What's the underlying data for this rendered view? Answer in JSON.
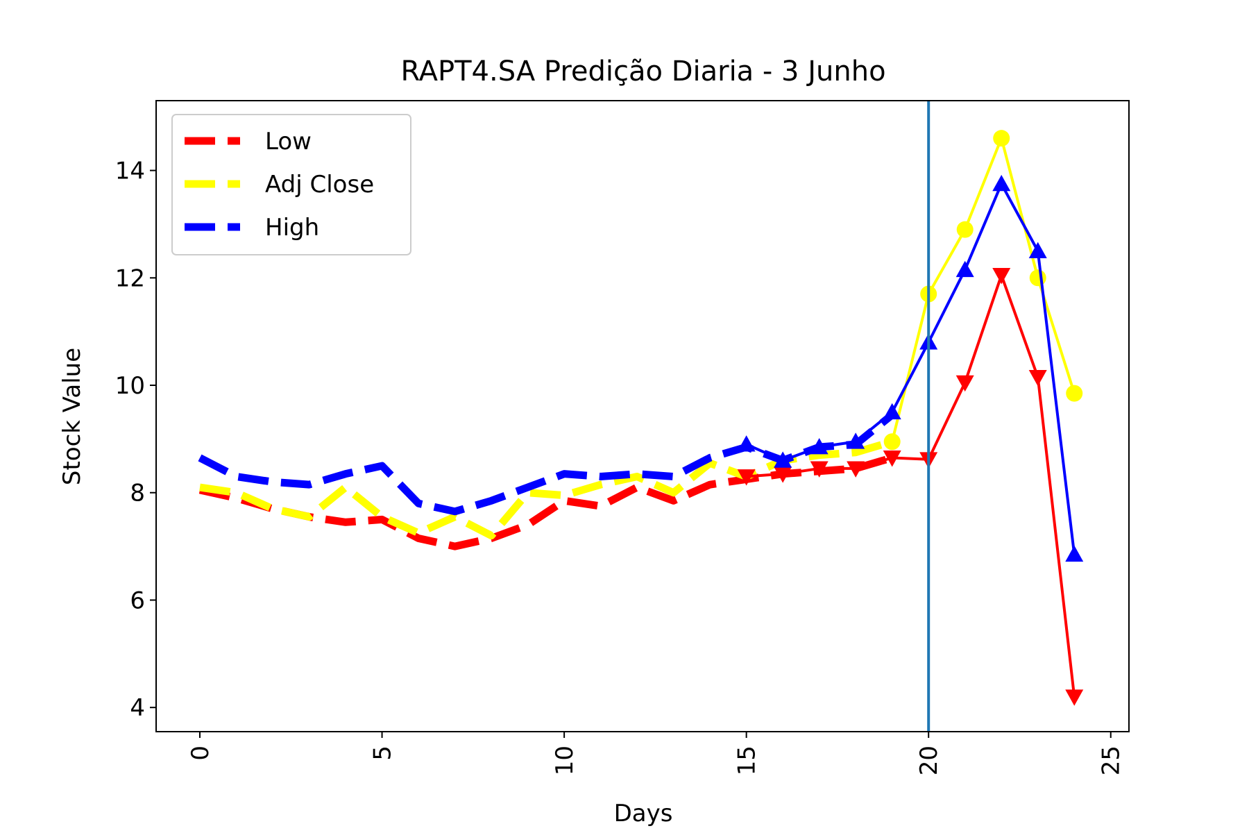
{
  "chart_data": {
    "type": "line",
    "title": "RAPT4.SA Predição Diaria - 3 Junho",
    "xlabel": "Days",
    "ylabel": "Stock Value",
    "xlim": [
      -1.2,
      25.5
    ],
    "ylim": [
      3.55,
      15.3
    ],
    "xticks": [
      0,
      5,
      10,
      15,
      20,
      25
    ],
    "yticks": [
      4,
      6,
      8,
      10,
      12,
      14
    ],
    "grid": false,
    "legend_position": "upper-left",
    "prediction_start_day": 20,
    "prediction_line_color": "#1f77b4",
    "series": [
      {
        "name": "Low",
        "color": "#ff0000",
        "marker": "triangle-down",
        "history_x": [
          0,
          1,
          2,
          3,
          4,
          5,
          6,
          7,
          8,
          9,
          10,
          11,
          12,
          13,
          14,
          15,
          16,
          17,
          18,
          19
        ],
        "history_y": [
          8.05,
          7.9,
          7.7,
          7.55,
          7.45,
          7.5,
          7.15,
          7.0,
          7.15,
          7.4,
          7.85,
          7.75,
          8.1,
          7.85,
          8.15,
          8.25,
          8.35,
          8.4,
          8.45,
          8.65
        ],
        "prediction_x": [
          15,
          16,
          17,
          18,
          19,
          20,
          21,
          22,
          23,
          24
        ],
        "prediction_y": [
          8.3,
          8.35,
          8.45,
          8.45,
          8.65,
          8.62,
          10.05,
          12.05,
          10.15,
          4.2
        ]
      },
      {
        "name": "Adj Close",
        "color": "#ffff00",
        "marker": "circle",
        "history_x": [
          0,
          1,
          2,
          3,
          4,
          5,
          6,
          7,
          8,
          9,
          10,
          11,
          12,
          13,
          14,
          15,
          16,
          17,
          18,
          19
        ],
        "history_y": [
          8.1,
          8.0,
          7.7,
          7.55,
          8.1,
          7.55,
          7.25,
          7.55,
          7.2,
          8.0,
          7.95,
          8.15,
          8.3,
          8.0,
          8.55,
          8.3,
          8.6,
          8.7,
          8.75,
          8.95
        ],
        "prediction_x": [
          19,
          20,
          21,
          22,
          23,
          24
        ],
        "prediction_y": [
          8.95,
          11.7,
          12.9,
          14.6,
          12.0,
          9.85
        ]
      },
      {
        "name": "High",
        "color": "#0000ff",
        "marker": "triangle-up",
        "history_x": [
          0,
          1,
          2,
          3,
          4,
          5,
          6,
          7,
          8,
          9,
          10,
          11,
          12,
          13,
          14,
          15,
          16,
          17,
          18,
          19
        ],
        "history_y": [
          8.65,
          8.3,
          8.2,
          8.15,
          8.35,
          8.5,
          7.8,
          7.65,
          7.85,
          8.1,
          8.35,
          8.3,
          8.35,
          8.3,
          8.65,
          8.85,
          8.6,
          8.85,
          8.9,
          9.45
        ],
        "prediction_x": [
          15,
          16,
          17,
          18,
          19,
          20,
          21,
          22,
          23,
          24
        ],
        "prediction_y": [
          8.9,
          8.6,
          8.85,
          8.95,
          9.5,
          10.8,
          12.15,
          13.75,
          12.5,
          6.85
        ]
      }
    ]
  }
}
